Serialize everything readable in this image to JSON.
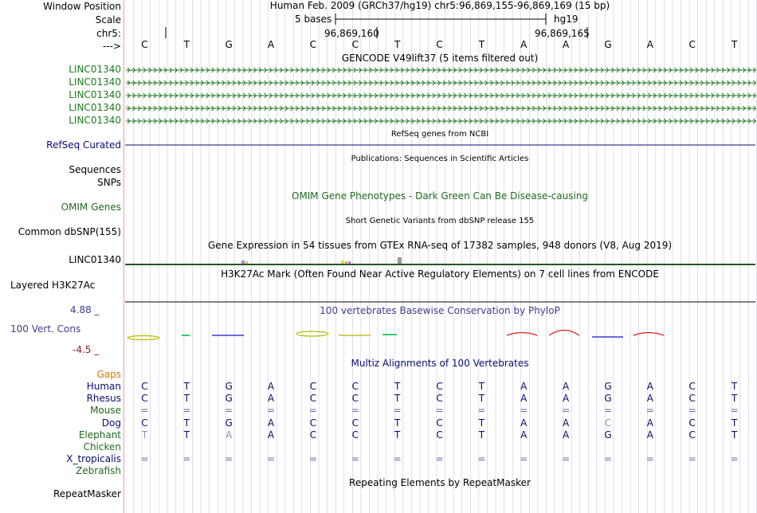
{
  "header": {
    "window_position_label": "Window Position",
    "scale_label": "Scale",
    "chr_label": "chr5:",
    "arrow_label": "--->",
    "title": "Human Feb. 2009 (GRCh37/hg19)   chr5:96,869,155-96,869,169 (15 bp)",
    "scale_text": "5 bases",
    "assembly": "hg19",
    "coord_1": "96,869,160",
    "coord_2": "96,869,165"
  },
  "reference_bases": [
    "C",
    "T",
    "G",
    "A",
    "C",
    "C",
    "T",
    "C",
    "T",
    "A",
    "A",
    "G",
    "A",
    "C",
    "T"
  ],
  "tracks": {
    "gencode_title": "GENCODE V49lift37 (5 items filtered out)",
    "gencode_items": [
      "LINC01340",
      "LINC01340",
      "LINC01340",
      "LINC01340",
      "LINC01340"
    ],
    "refseq_title": "RefSeq genes from NCBI",
    "refseq_label": "RefSeq Curated",
    "publications_title": "Publications: Sequences in Scientific Articles",
    "sequences_label": "Sequences",
    "snps_label": "SNPs",
    "omim_title": "OMIM Gene Phenotypes - Dark Green Can Be Disease-causing",
    "omim_label": "OMIM Genes",
    "dbsnp_title": "Short Genetic Variants from dbSNP release 155",
    "dbsnp_label": "Common dbSNP(155)",
    "gtex_title": "Gene Expression in 54 tissues from GTEx RNA-seq of 17382 samples, 948 donors (V8, Aug 2019)",
    "gtex_label": "LINC01340",
    "h3k27ac_title": "H3K27Ac Mark (Often Found Near Active Regulatory Elements) on 7 cell lines from ENCODE",
    "h3k27ac_label": "Layered H3K27Ac",
    "phylop_max": "4.88 _",
    "phylop_title": "100 vertebrates Basewise Conservation by PhyloP",
    "phylop_label": "100 Vert. Cons",
    "phylop_min": "-4.5 _",
    "multiz_title": "Multiz Alignments of 100 Vertebrates",
    "gaps_label": "Gaps",
    "repeatmasker_title": "Repeating Elements by RepeatMasker",
    "repeatmasker_label": "RepeatMasker"
  },
  "alignments": [
    {
      "species": "Human",
      "bases": [
        "C",
        "T",
        "G",
        "A",
        "C",
        "C",
        "T",
        "C",
        "T",
        "A",
        "A",
        "G",
        "A",
        "C",
        "T"
      ]
    },
    {
      "species": "Rhesus",
      "bases": [
        "C",
        "T",
        "G",
        "A",
        "C",
        "C",
        "T",
        "C",
        "T",
        "A",
        "A",
        "G",
        "A",
        "C",
        "T"
      ]
    },
    {
      "species": "Mouse",
      "bases": [
        "=",
        "=",
        "=",
        "=",
        "=",
        "=",
        "=",
        "=",
        "=",
        "=",
        "=",
        "=",
        "=",
        "=",
        "="
      ]
    },
    {
      "species": "Dog",
      "bases": [
        "C",
        "T",
        "G",
        "A",
        "C",
        "C",
        "T",
        "C",
        "T",
        "A",
        "A",
        "C",
        "A",
        "C",
        "T"
      ]
    },
    {
      "species": "Elephant",
      "bases": [
        "T",
        "T",
        "A",
        "A",
        "C",
        "C",
        "T",
        "C",
        "T",
        "A",
        "A",
        "G",
        "A",
        "C",
        "T"
      ]
    },
    {
      "species": "Chicken",
      "bases": []
    },
    {
      "species": "X_tropicalis",
      "bases": [
        "=",
        "=",
        "=",
        "=",
        "=",
        "=",
        "=",
        "=",
        "=",
        "=",
        "=",
        "=",
        "=",
        "=",
        "="
      ]
    },
    {
      "species": "Zebrafish",
      "bases": []
    }
  ],
  "colors": {
    "navy": "#0a0a6e",
    "gencode_green": "#1d7a1d",
    "refseq_navy": "#0c0c78",
    "phylop_purple": "#3d3d8f",
    "gaps_orange": "#cc7a00",
    "grid": "#c8c8e0",
    "ruler_pink": "#e5a0b0"
  }
}
